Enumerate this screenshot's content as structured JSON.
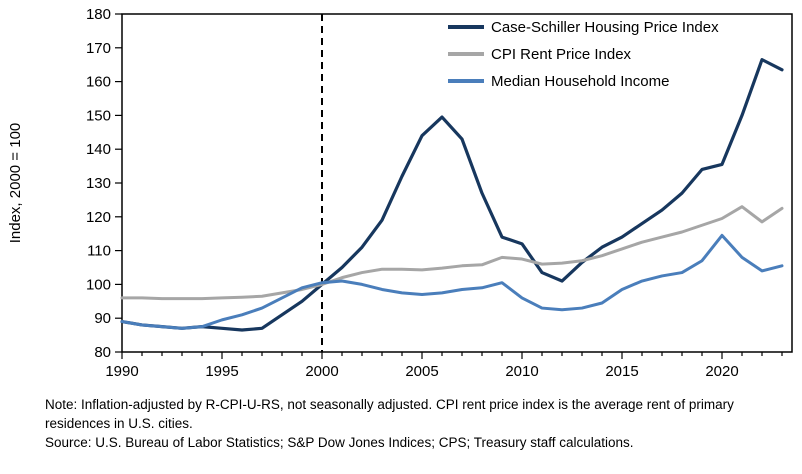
{
  "chart_data": {
    "type": "line",
    "title": "",
    "xlabel": "",
    "ylabel": "Index, 2000 = 100",
    "ylim": [
      80,
      180
    ],
    "xlim": [
      1990,
      2023.5
    ],
    "yticks": [
      80,
      90,
      100,
      110,
      120,
      130,
      140,
      150,
      160,
      170,
      180
    ],
    "xticks": [
      1990,
      1995,
      2000,
      2005,
      2010,
      2015,
      2020
    ],
    "grid": false,
    "legend_position": "top-right-inside",
    "reference_line": {
      "x": 2000,
      "style": "dashed",
      "color": "#000000"
    },
    "x": [
      1990,
      1991,
      1992,
      1993,
      1994,
      1995,
      1996,
      1997,
      1998,
      1999,
      2000,
      2001,
      2002,
      2003,
      2004,
      2005,
      2006,
      2007,
      2008,
      2009,
      2010,
      2011,
      2012,
      2013,
      2014,
      2015,
      2016,
      2017,
      2018,
      2019,
      2020,
      2021,
      2022,
      2023
    ],
    "series": [
      {
        "name": "Case-Schiller Housing Price Index",
        "color": "#17375e",
        "width": 3.2,
        "values": [
          89,
          88,
          87.5,
          87,
          87.5,
          87,
          86.5,
          87,
          91,
          95,
          100,
          105,
          111,
          119,
          132,
          144,
          149.5,
          143,
          127,
          114,
          112,
          103.5,
          101,
          106.5,
          111,
          114,
          118,
          122,
          127,
          134,
          135.5,
          150,
          166.5,
          163.5
        ]
      },
      {
        "name": "CPI Rent Price Index",
        "color": "#a6a6a6",
        "width": 3,
        "values": [
          96,
          96,
          95.8,
          95.8,
          95.8,
          96,
          96.2,
          96.5,
          97.5,
          98.5,
          100,
          102,
          103.5,
          104.5,
          104.5,
          104.3,
          104.8,
          105.5,
          105.8,
          108,
          107.5,
          106,
          106.3,
          107,
          108.5,
          110.5,
          112.5,
          114,
          115.5,
          117.5,
          119.5,
          123,
          118.5,
          122.5
        ]
      },
      {
        "name": "Median Household Income",
        "color": "#4a7ebb",
        "width": 3,
        "values": [
          89,
          88,
          87.5,
          87,
          87.5,
          89.5,
          91,
          93,
          96,
          99,
          100.5,
          101,
          100,
          98.5,
          97.5,
          97,
          97.5,
          98.5,
          99,
          100.5,
          96,
          93,
          92.5,
          93,
          94.5,
          98.5,
          101,
          102.5,
          103.5,
          107,
          114.5,
          108,
          104,
          105.5
        ]
      }
    ]
  },
  "notes": {
    "note": "Note: Inflation-adjusted by R-CPI-U-RS, not seasonally adjusted. CPI rent price index is the average rent of primary residences in U.S. cities.",
    "source": "Source: U.S. Bureau of Labor Statistics; S&P Dow Jones Indices; CPS; Treasury staff calculations."
  }
}
